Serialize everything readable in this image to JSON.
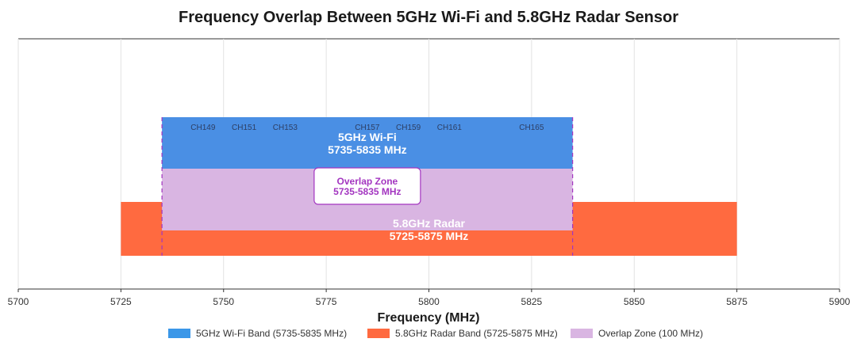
{
  "chart_data": {
    "type": "bar",
    "orientation": "horizontal-range",
    "title": "Frequency Overlap Between 5GHz Wi-Fi and 5.8GHz Radar Sensor",
    "xlabel": "Frequency (MHz)",
    "xlim": [
      5700,
      5900
    ],
    "xticks": [
      5700,
      5725,
      5750,
      5775,
      5800,
      5825,
      5850,
      5875,
      5900
    ],
    "grid": true,
    "legend_position": "bottom",
    "colors": {
      "wifi": "#4a8fe4",
      "radar": "#ff6a40",
      "overlap": "#d9b5e2",
      "overlap_accent": "#a335c0",
      "legend_wifi": "#3b97e8"
    },
    "series": [
      {
        "name": "5GHz Wi-Fi Band (5735-5835 MHz)",
        "start": 5735,
        "end": 5835,
        "label_line1": "5GHz Wi-Fi",
        "label_line2": "5735-5835 MHz"
      },
      {
        "name": "5.8GHz Radar Band (5725-5875 MHz)",
        "start": 5725,
        "end": 5875,
        "label_line1": "5.8GHz Radar",
        "label_line2": "5725-5875 MHz"
      },
      {
        "name": "Overlap Zone (100 MHz)",
        "start": 5735,
        "end": 5835
      }
    ],
    "channels": [
      {
        "label": "CH149",
        "freq": 5745
      },
      {
        "label": "CH151",
        "freq": 5755
      },
      {
        "label": "CH153",
        "freq": 5765
      },
      {
        "label": "CH157",
        "freq": 5785
      },
      {
        "label": "CH159",
        "freq": 5795
      },
      {
        "label": "CH161",
        "freq": 5805
      },
      {
        "label": "CH165",
        "freq": 5825
      }
    ],
    "annotations": [
      {
        "text_line1": "Overlap Zone",
        "text_line2": "5735-5835 MHz",
        "center": 5785
      }
    ]
  }
}
